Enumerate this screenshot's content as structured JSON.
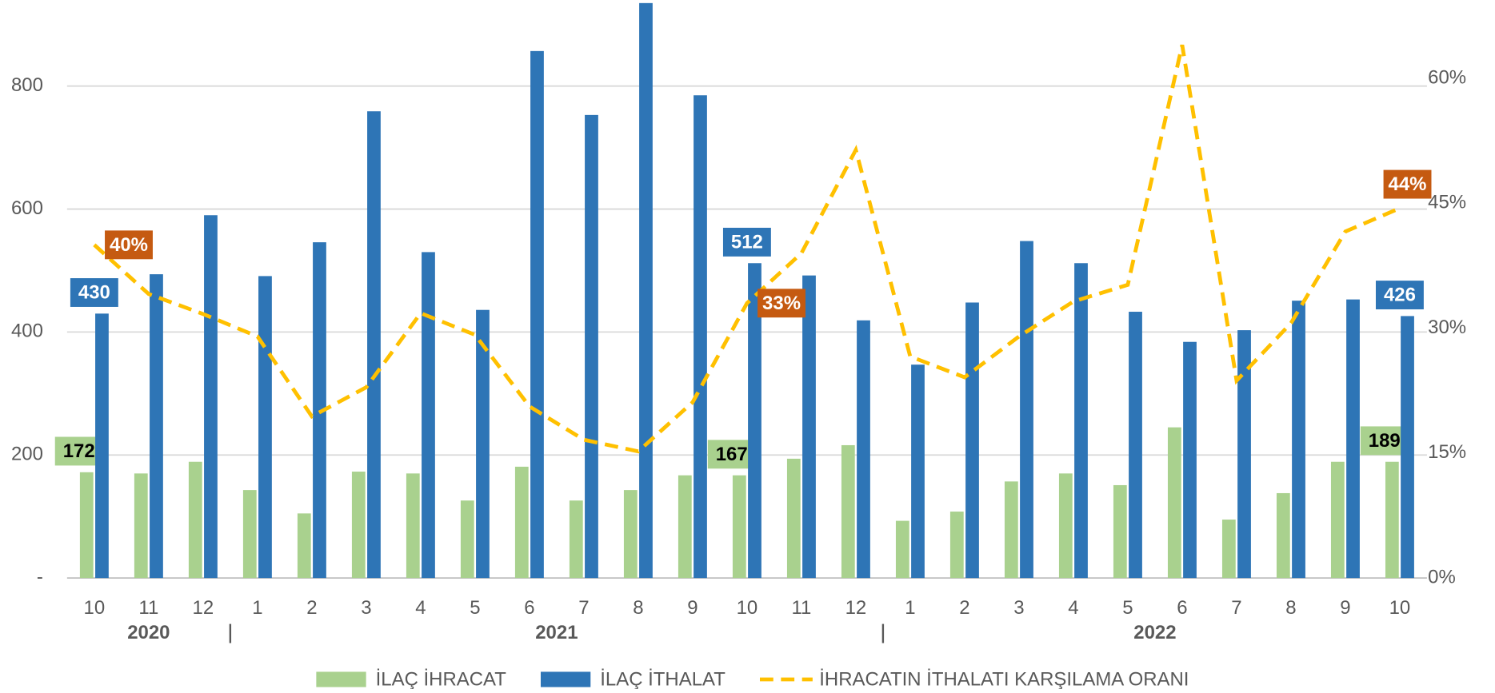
{
  "chart_data": {
    "type": "bar",
    "categories": [
      "10",
      "11",
      "12",
      "1",
      "2",
      "3",
      "4",
      "5",
      "6",
      "7",
      "8",
      "9",
      "10",
      "11",
      "12",
      "1",
      "2",
      "3",
      "4",
      "5",
      "6",
      "7",
      "8",
      "9",
      "10"
    ],
    "year_groups": [
      {
        "label": "2020",
        "start": 0,
        "end": 2
      },
      {
        "label": "2021",
        "start": 3,
        "end": 14
      },
      {
        "label": "2022",
        "start": 15,
        "end": 24
      }
    ],
    "series": [
      {
        "name": "İLAÇ İHRACAT",
        "type": "bar",
        "color": "#a9d18e",
        "values": [
          172,
          170,
          189,
          143,
          105,
          173,
          170,
          126,
          181,
          126,
          143,
          167,
          167,
          194,
          216,
          93,
          108,
          157,
          170,
          151,
          245,
          95,
          138,
          189,
          189
        ],
        "value_labels": [
          "172",
          null,
          null,
          null,
          null,
          null,
          null,
          null,
          null,
          null,
          null,
          null,
          "167",
          null,
          null,
          null,
          null,
          null,
          null,
          null,
          null,
          null,
          null,
          null,
          "189"
        ]
      },
      {
        "name": "İLAÇ İTHALAT",
        "type": "bar",
        "color": "#2e75b6",
        "values": [
          430,
          494,
          590,
          491,
          546,
          759,
          530,
          436,
          857,
          753,
          935,
          785,
          512,
          492,
          419,
          347,
          448,
          548,
          512,
          433,
          384,
          403,
          451,
          453,
          426
        ],
        "value_labels": [
          "430",
          null,
          null,
          null,
          null,
          null,
          null,
          null,
          null,
          null,
          null,
          null,
          "512",
          null,
          null,
          null,
          null,
          null,
          null,
          null,
          null,
          null,
          null,
          null,
          "426"
        ]
      },
      {
        "name": "İHRACATIN İTHALATI KARŞILAMA ORANI",
        "type": "line",
        "axis": "y2",
        "color": "#ffc000",
        "label_color": "#c55a11",
        "values": [
          40,
          34.1,
          31.7,
          29,
          19.4,
          22.9,
          31.8,
          29.2,
          20.6,
          16.6,
          15.2,
          21.1,
          33,
          39,
          51.4,
          26.6,
          24.1,
          29,
          33.2,
          35.2,
          64,
          23.7,
          30.6,
          41.6,
          44.4
        ],
        "value_labels": [
          "40%",
          null,
          null,
          null,
          null,
          null,
          null,
          null,
          null,
          null,
          null,
          null,
          "33%",
          null,
          null,
          null,
          null,
          null,
          null,
          null,
          null,
          null,
          null,
          null,
          "44%"
        ]
      }
    ],
    "ylim": [
      0,
      940
    ],
    "yticks": [
      {
        "value": 0,
        "label": "-"
      },
      200,
      400,
      600,
      800
    ],
    "y2lim": [
      0,
      69.4
    ],
    "y2ticks": [
      {
        "value": 0,
        "label": "0%"
      },
      {
        "value": 15,
        "label": "15%"
      },
      {
        "value": 30,
        "label": "30%"
      },
      {
        "value": 45,
        "label": "45%"
      },
      {
        "value": 60,
        "label": "60%"
      }
    ],
    "grid": true,
    "legend": "bottom"
  }
}
